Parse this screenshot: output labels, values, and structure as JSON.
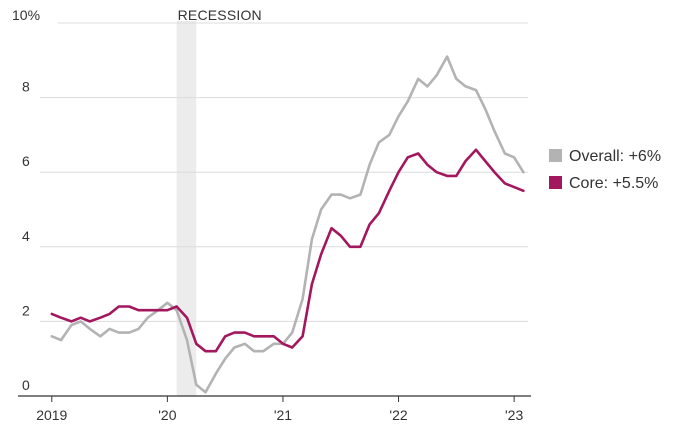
{
  "chart_data": {
    "type": "line",
    "y_unit_label": "10%",
    "y_ticks": [
      0,
      2,
      4,
      6,
      8
    ],
    "ylim": [
      0,
      10
    ],
    "x_ticks": [
      {
        "label": "2019",
        "value": 2019.0
      },
      {
        "label": "'20",
        "value": 2020.0
      },
      {
        "label": "'21",
        "value": 2021.0
      },
      {
        "label": "'22",
        "value": 2022.0
      },
      {
        "label": "'23",
        "value": 2023.0
      }
    ],
    "xlim": [
      2018.95,
      2023.12
    ],
    "grid": "horizontal",
    "legend_position": "right",
    "recession": {
      "label": "RECESSION",
      "start": 2020.08,
      "end": 2020.25
    },
    "series": [
      {
        "name": "Overall: +6%",
        "color": "#b3b3b3",
        "points": [
          [
            2019.0,
            1.6
          ],
          [
            2019.08,
            1.5
          ],
          [
            2019.17,
            1.9
          ],
          [
            2019.25,
            2.0
          ],
          [
            2019.33,
            1.8
          ],
          [
            2019.42,
            1.6
          ],
          [
            2019.5,
            1.8
          ],
          [
            2019.58,
            1.7
          ],
          [
            2019.67,
            1.7
          ],
          [
            2019.75,
            1.8
          ],
          [
            2019.83,
            2.1
          ],
          [
            2019.92,
            2.3
          ],
          [
            2020.0,
            2.5
          ],
          [
            2020.08,
            2.3
          ],
          [
            2020.17,
            1.5
          ],
          [
            2020.25,
            0.3
          ],
          [
            2020.33,
            0.1
          ],
          [
            2020.42,
            0.6
          ],
          [
            2020.5,
            1.0
          ],
          [
            2020.58,
            1.3
          ],
          [
            2020.67,
            1.4
          ],
          [
            2020.75,
            1.2
          ],
          [
            2020.83,
            1.2
          ],
          [
            2020.92,
            1.4
          ],
          [
            2021.0,
            1.4
          ],
          [
            2021.08,
            1.7
          ],
          [
            2021.17,
            2.6
          ],
          [
            2021.25,
            4.2
          ],
          [
            2021.33,
            5.0
          ],
          [
            2021.42,
            5.4
          ],
          [
            2021.5,
            5.4
          ],
          [
            2021.58,
            5.3
          ],
          [
            2021.67,
            5.4
          ],
          [
            2021.75,
            6.2
          ],
          [
            2021.83,
            6.8
          ],
          [
            2021.92,
            7.0
          ],
          [
            2022.0,
            7.5
          ],
          [
            2022.08,
            7.9
          ],
          [
            2022.17,
            8.5
          ],
          [
            2022.25,
            8.3
          ],
          [
            2022.33,
            8.6
          ],
          [
            2022.42,
            9.1
          ],
          [
            2022.5,
            8.5
          ],
          [
            2022.58,
            8.3
          ],
          [
            2022.67,
            8.2
          ],
          [
            2022.75,
            7.7
          ],
          [
            2022.83,
            7.1
          ],
          [
            2022.92,
            6.5
          ],
          [
            2023.0,
            6.4
          ],
          [
            2023.08,
            6.0
          ]
        ]
      },
      {
        "name": "Core: +5.5%",
        "color": "#a3175f",
        "points": [
          [
            2019.0,
            2.2
          ],
          [
            2019.08,
            2.1
          ],
          [
            2019.17,
            2.0
          ],
          [
            2019.25,
            2.1
          ],
          [
            2019.33,
            2.0
          ],
          [
            2019.42,
            2.1
          ],
          [
            2019.5,
            2.2
          ],
          [
            2019.58,
            2.4
          ],
          [
            2019.67,
            2.4
          ],
          [
            2019.75,
            2.3
          ],
          [
            2019.83,
            2.3
          ],
          [
            2019.92,
            2.3
          ],
          [
            2020.0,
            2.3
          ],
          [
            2020.08,
            2.4
          ],
          [
            2020.17,
            2.1
          ],
          [
            2020.25,
            1.4
          ],
          [
            2020.33,
            1.2
          ],
          [
            2020.42,
            1.2
          ],
          [
            2020.5,
            1.6
          ],
          [
            2020.58,
            1.7
          ],
          [
            2020.67,
            1.7
          ],
          [
            2020.75,
            1.6
          ],
          [
            2020.83,
            1.6
          ],
          [
            2020.92,
            1.6
          ],
          [
            2021.0,
            1.4
          ],
          [
            2021.08,
            1.3
          ],
          [
            2021.17,
            1.6
          ],
          [
            2021.25,
            3.0
          ],
          [
            2021.33,
            3.8
          ],
          [
            2021.42,
            4.5
          ],
          [
            2021.5,
            4.3
          ],
          [
            2021.58,
            4.0
          ],
          [
            2021.67,
            4.0
          ],
          [
            2021.75,
            4.6
          ],
          [
            2021.83,
            4.9
          ],
          [
            2021.92,
            5.5
          ],
          [
            2022.0,
            6.0
          ],
          [
            2022.08,
            6.4
          ],
          [
            2022.17,
            6.5
          ],
          [
            2022.25,
            6.2
          ],
          [
            2022.33,
            6.0
          ],
          [
            2022.42,
            5.9
          ],
          [
            2022.5,
            5.9
          ],
          [
            2022.58,
            6.3
          ],
          [
            2022.67,
            6.6
          ],
          [
            2022.75,
            6.3
          ],
          [
            2022.83,
            6.0
          ],
          [
            2022.92,
            5.7
          ],
          [
            2023.0,
            5.6
          ],
          [
            2023.08,
            5.5
          ]
        ]
      }
    ]
  }
}
